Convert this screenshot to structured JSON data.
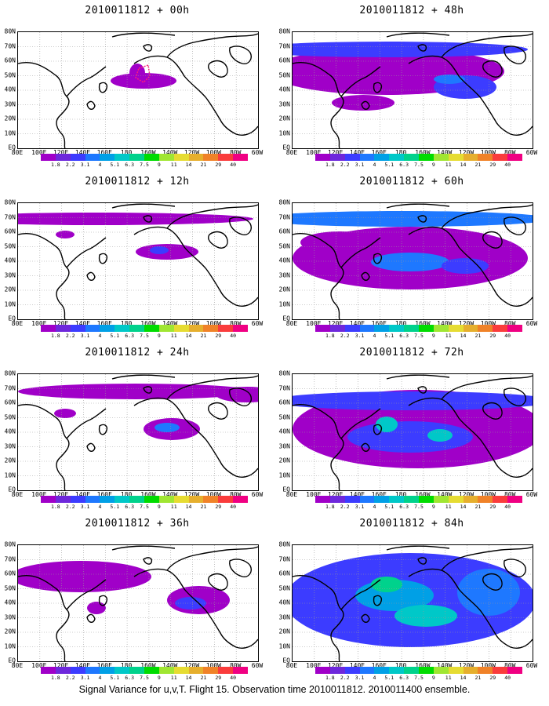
{
  "panels": [
    {
      "title": "2010011812 + 00h",
      "lead": "00h"
    },
    {
      "title": "2010011812 + 48h",
      "lead": "48h"
    },
    {
      "title": "2010011812 + 12h",
      "lead": "12h"
    },
    {
      "title": "2010011812 + 60h",
      "lead": "60h"
    },
    {
      "title": "2010011812 + 24h",
      "lead": "24h"
    },
    {
      "title": "2010011812 + 72h",
      "lead": "72h"
    },
    {
      "title": "2010011812 + 36h",
      "lead": "36h"
    },
    {
      "title": "2010011812 + 84h",
      "lead": "84h"
    }
  ],
  "lat_labels": [
    "80N",
    "70N",
    "60N",
    "50N",
    "40N",
    "30N",
    "20N",
    "10N",
    "EQ"
  ],
  "lon_labels": [
    "80E",
    "100E",
    "120E",
    "140E",
    "160E",
    "180",
    "160W",
    "140W",
    "120W",
    "100W",
    "80W",
    "60W"
  ],
  "colorbar": {
    "labels": [
      "1.8",
      "2.2",
      "3.1",
      "4",
      "5.1",
      "6.3",
      "7.5",
      "9",
      "11",
      "14",
      "21",
      "29",
      "40"
    ],
    "colors": [
      "#a000c8",
      "#6e28dc",
      "#3c3cff",
      "#1e78ff",
      "#00a0e6",
      "#00c8c8",
      "#00d28c",
      "#00dc00",
      "#a0e632",
      "#e6dc32",
      "#e6af2d",
      "#f08228",
      "#fa3c3c",
      "#f00082"
    ]
  },
  "footer": "Signal Variance for u,v,T. Flight 15. Observation time 2010011812. 2010011400 ensemble."
}
